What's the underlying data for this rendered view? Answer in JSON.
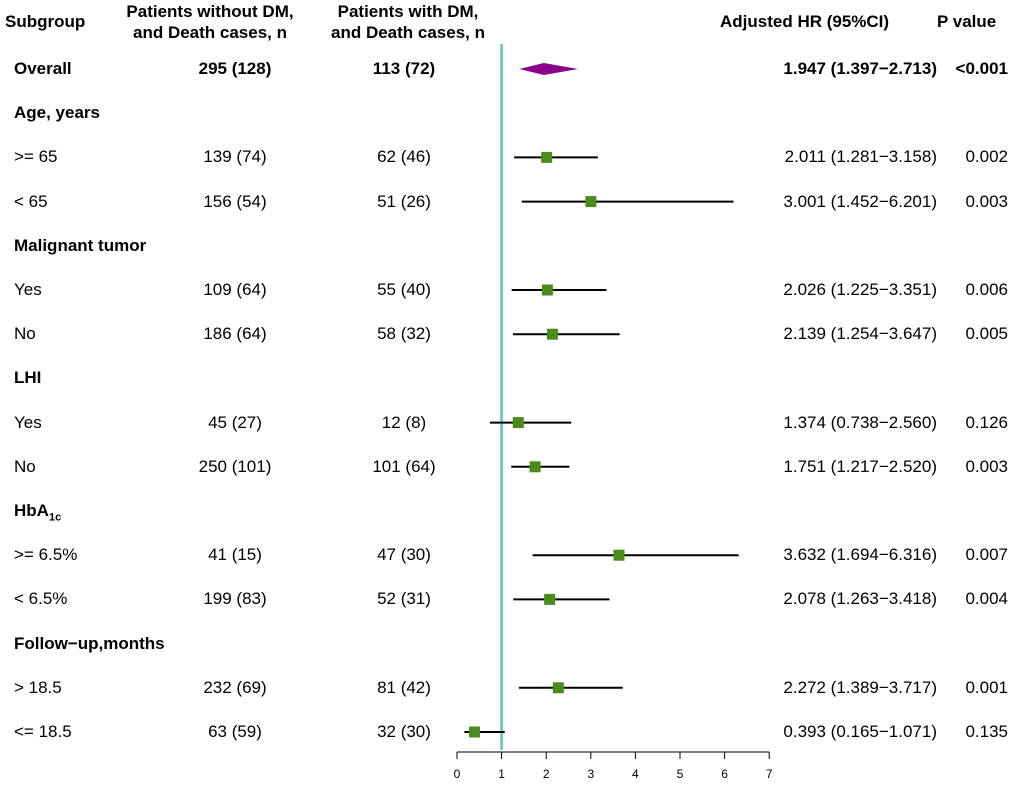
{
  "headers": {
    "subgroup": "Subgroup",
    "without_dm_line1": "Patients without DM,",
    "without_dm_line2": "and Death cases, n",
    "with_dm_line1": "Patients with DM,",
    "with_dm_line2": "and Death cases, n",
    "hr": "Adjusted HR (95%CI)",
    "p": "P value"
  },
  "colors": {
    "reference_line": "#76c8cc",
    "square": "#4a8c1c",
    "diamond": "#8b008b",
    "ci_line": "#000000"
  },
  "chart_data": {
    "type": "forest",
    "xlabel": "",
    "xlim": [
      0,
      7
    ],
    "xticks": [
      "0",
      "1",
      "2",
      "3",
      "4",
      "5",
      "6",
      "7"
    ],
    "reference_value": 1,
    "rows": [
      {
        "label": "Overall",
        "kind": "overall",
        "without": "295 (128)",
        "with": "113 (72)",
        "hr": 1.947,
        "lo": 1.397,
        "hi": 2.713,
        "hr_text": "1.947 (1.397−2.713)",
        "p": "<0.001"
      },
      {
        "label": "Age, years",
        "kind": "group"
      },
      {
        "label": ">= 65",
        "kind": "item",
        "without": "139 (74)",
        "with": "62 (46)",
        "hr": 2.011,
        "lo": 1.281,
        "hi": 3.158,
        "hr_text": "2.011 (1.281−3.158)",
        "p": "0.002"
      },
      {
        "label": "< 65",
        "kind": "item",
        "without": "156 (54)",
        "with": "51 (26)",
        "hr": 3.001,
        "lo": 1.452,
        "hi": 6.201,
        "hr_text": "3.001 (1.452−6.201)",
        "p": "0.003"
      },
      {
        "label": "Malignant tumor",
        "kind": "group"
      },
      {
        "label": "Yes",
        "kind": "item",
        "without": "109 (64)",
        "with": "55 (40)",
        "hr": 2.026,
        "lo": 1.225,
        "hi": 3.351,
        "hr_text": "2.026 (1.225−3.351)",
        "p": "0.006"
      },
      {
        "label": "No",
        "kind": "item",
        "without": "186 (64)",
        "with": "58 (32)",
        "hr": 2.139,
        "lo": 1.254,
        "hi": 3.647,
        "hr_text": "2.139 (1.254−3.647)",
        "p": "0.005"
      },
      {
        "label": "LHI",
        "kind": "group"
      },
      {
        "label": "Yes",
        "kind": "item",
        "without": "45 (27)",
        "with": "12 (8)",
        "hr": 1.374,
        "lo": 0.738,
        "hi": 2.56,
        "hr_text": "1.374 (0.738−2.560)",
        "p": "0.126"
      },
      {
        "label": "No",
        "kind": "item",
        "without": "250 (101)",
        "with": "101 (64)",
        "hr": 1.751,
        "lo": 1.217,
        "hi": 2.52,
        "hr_text": "1.751 (1.217−2.520)",
        "p": "0.003"
      },
      {
        "label": "HbA",
        "sub": "1c",
        "kind": "group"
      },
      {
        "label": ">= 6.5%",
        "kind": "item",
        "without": "41 (15)",
        "with": "47 (30)",
        "hr": 3.632,
        "lo": 1.694,
        "hi": 6.316,
        "hr_text": "3.632 (1.694−6.316)",
        "p": "0.007"
      },
      {
        "label": "< 6.5%",
        "kind": "item",
        "without": "199 (83)",
        "with": "52 (31)",
        "hr": 2.078,
        "lo": 1.263,
        "hi": 3.418,
        "hr_text": "2.078 (1.263−3.418)",
        "p": "0.004"
      },
      {
        "label": "Follow−up,months",
        "kind": "group"
      },
      {
        "label": "> 18.5",
        "kind": "item",
        "without": "232 (69)",
        "with": "81 (42)",
        "hr": 2.272,
        "lo": 1.389,
        "hi": 3.717,
        "hr_text": "2.272 (1.389−3.717)",
        "p": "0.001"
      },
      {
        "label": "<= 18.5",
        "kind": "item",
        "without": "63  (59)",
        "with": "32 (30)",
        "hr": 0.393,
        "lo": 0.165,
        "hi": 1.071,
        "hr_text": "0.393 (0.165−1.071)",
        "p": "0.135"
      }
    ]
  }
}
